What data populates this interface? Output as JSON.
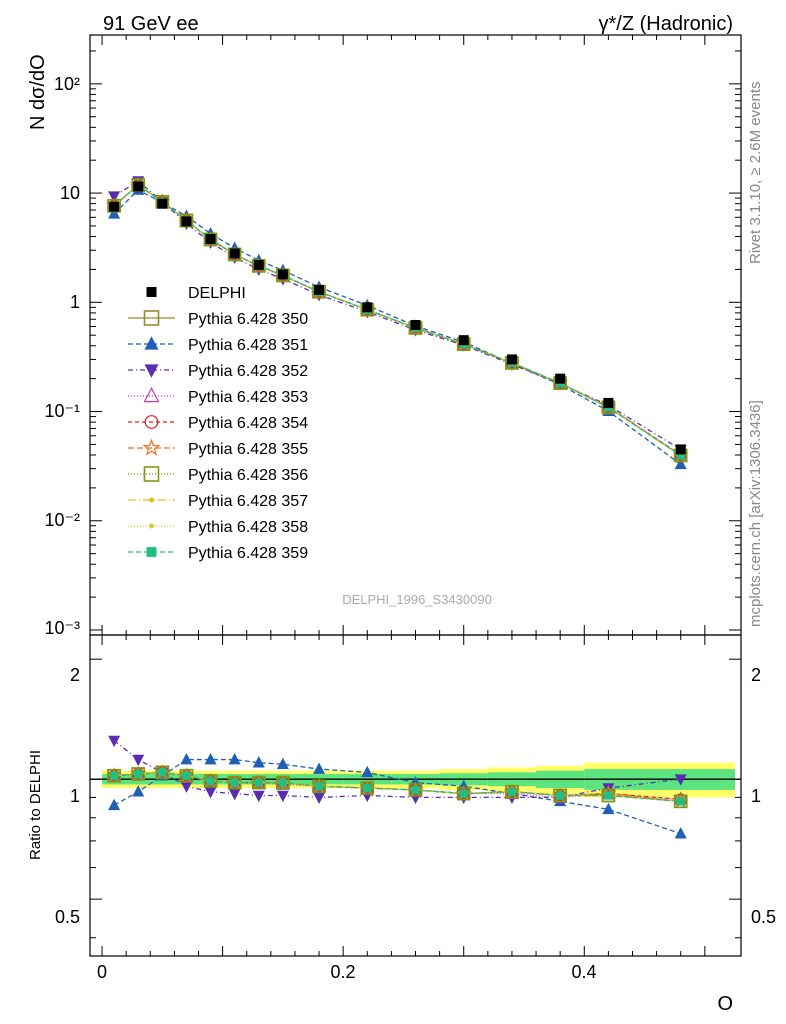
{
  "header": {
    "left": "91 GeV ee",
    "right": "γ*/Z (Hadronic)"
  },
  "side_labels": {
    "rivet": "Rivet 3.1.10, ≥ 2.6M events",
    "mcplots": "mcplots.cern.ch [arXiv:1306.3436]"
  },
  "watermark": "DELPHI_1996_S3430090",
  "axes": {
    "main_ylabel": "N dσ/dO",
    "ratio_ylabel": "Ratio to DELPHI",
    "xlabel": "O",
    "main_yticks": [
      "10⁻³",
      "10⁻²",
      "10⁻¹",
      "1",
      "10",
      "10²"
    ],
    "ratio_yticks": [
      "0.5",
      "1",
      "2"
    ],
    "xticks": [
      "0",
      "0.2",
      "0.4"
    ]
  },
  "colors": {
    "DELPHI": "#000000",
    "350": "#9a8a2a",
    "351": "#1f5fb5",
    "352": "#5a2db0",
    "353": "#c040a0",
    "354": "#e02020",
    "355": "#f07020",
    "356": "#7a9a10",
    "357": "#e0c020",
    "358": "#d0d020",
    "359": "#20c080",
    "band_inner": "#33dd88",
    "band_outer": "#ffff66"
  },
  "chart_data": {
    "type": "scatter",
    "x": [
      0.01,
      0.03,
      0.05,
      0.07,
      0.09,
      0.11,
      0.13,
      0.15,
      0.18,
      0.22,
      0.26,
      0.3,
      0.34,
      0.38,
      0.42,
      0.48
    ],
    "xlim": [
      -0.01,
      0.53
    ],
    "main_ylim": [
      0.0009,
      280
    ],
    "main_yscale": "log",
    "ratio_ylim": [
      0.36,
      2.3
    ],
    "ratio_yscale": "log",
    "legend_position": "middle-left",
    "reference": {
      "name": "DELPHI",
      "values": [
        7.5,
        11.5,
        8.0,
        5.5,
        3.8,
        2.8,
        2.2,
        1.8,
        1.3,
        0.9,
        0.62,
        0.45,
        0.3,
        0.2,
        0.12,
        0.045
      ]
    },
    "ratio_band": {
      "inner": [
        0.03,
        0.03,
        0.03,
        0.03,
        0.03,
        0.03,
        0.03,
        0.03,
        0.03,
        0.03,
        0.03,
        0.035,
        0.04,
        0.05,
        0.06,
        0.06
      ],
      "outer": [
        0.05,
        0.05,
        0.05,
        0.05,
        0.05,
        0.05,
        0.05,
        0.05,
        0.05,
        0.05,
        0.05,
        0.06,
        0.07,
        0.08,
        0.1,
        0.1
      ]
    },
    "series": [
      {
        "name": "Pythia 6.428 350",
        "key": "350",
        "marker": "square-open",
        "dash": "",
        "ratio": [
          1.02,
          1.03,
          1.04,
          1.02,
          0.99,
          0.98,
          0.98,
          0.98,
          0.96,
          0.95,
          0.94,
          0.92,
          0.93,
          0.91,
          0.91,
          0.88
        ]
      },
      {
        "name": "Pythia 6.428 351",
        "key": "351",
        "marker": "triangle-up",
        "dash": "5,3",
        "ratio": [
          0.86,
          0.93,
          1.02,
          1.12,
          1.12,
          1.12,
          1.1,
          1.09,
          1.06,
          1.04,
          0.98,
          0.96,
          0.92,
          0.88,
          0.84,
          0.73
        ]
      },
      {
        "name": "Pythia 6.428 352",
        "key": "352",
        "marker": "triangle-down",
        "dash": "5,3,1,3",
        "ratio": [
          1.25,
          1.12,
          1.04,
          0.96,
          0.93,
          0.92,
          0.91,
          0.91,
          0.9,
          0.91,
          0.9,
          0.9,
          0.9,
          0.9,
          0.95,
          1.0
        ]
      },
      {
        "name": "Pythia 6.428 353",
        "key": "353",
        "marker": "triangle-open",
        "dash": "1,2",
        "ratio": [
          1.02,
          1.03,
          1.04,
          1.02,
          0.99,
          0.98,
          0.98,
          0.97,
          0.96,
          0.95,
          0.94,
          0.92,
          0.92,
          0.9,
          0.92,
          0.89
        ]
      },
      {
        "name": "Pythia 6.428 354",
        "key": "354",
        "marker": "circle-open",
        "dash": "4,3",
        "ratio": [
          1.02,
          1.03,
          1.04,
          1.02,
          0.99,
          0.98,
          0.98,
          0.98,
          0.96,
          0.95,
          0.94,
          0.92,
          0.93,
          0.91,
          0.92,
          0.89
        ]
      },
      {
        "name": "Pythia 6.428 355",
        "key": "355",
        "marker": "star-open",
        "dash": "6,3",
        "ratio": [
          1.02,
          1.03,
          1.04,
          1.02,
          0.99,
          0.98,
          0.98,
          0.98,
          0.96,
          0.95,
          0.94,
          0.92,
          0.93,
          0.91,
          0.92,
          0.88
        ]
      },
      {
        "name": "Pythia 6.428 356",
        "key": "356",
        "marker": "square-open",
        "dash": "1,2",
        "ratio": [
          1.02,
          1.03,
          1.04,
          1.02,
          0.99,
          0.98,
          0.98,
          0.98,
          0.96,
          0.95,
          0.94,
          0.92,
          0.93,
          0.91,
          0.91,
          0.88
        ]
      },
      {
        "name": "Pythia 6.428 357",
        "key": "357",
        "marker": "dot",
        "dash": "8,3,1,3",
        "ratio": [
          1.02,
          1.03,
          1.04,
          1.02,
          0.99,
          0.98,
          0.98,
          0.98,
          0.96,
          0.95,
          0.94,
          0.92,
          0.93,
          0.91,
          0.91,
          0.88
        ]
      },
      {
        "name": "Pythia 6.428 358",
        "key": "358",
        "marker": "dot",
        "dash": "1,2",
        "ratio": [
          1.02,
          1.03,
          1.04,
          1.02,
          0.99,
          0.98,
          0.98,
          0.98,
          0.96,
          0.95,
          0.94,
          0.92,
          0.93,
          0.91,
          0.91,
          0.88
        ]
      },
      {
        "name": "Pythia 6.428 359",
        "key": "359",
        "marker": "square-filled",
        "dash": "5,3",
        "ratio": [
          1.02,
          1.03,
          1.04,
          1.02,
          0.99,
          0.98,
          0.98,
          0.98,
          0.96,
          0.95,
          0.94,
          0.92,
          0.93,
          0.91,
          0.91,
          0.88
        ]
      }
    ]
  }
}
